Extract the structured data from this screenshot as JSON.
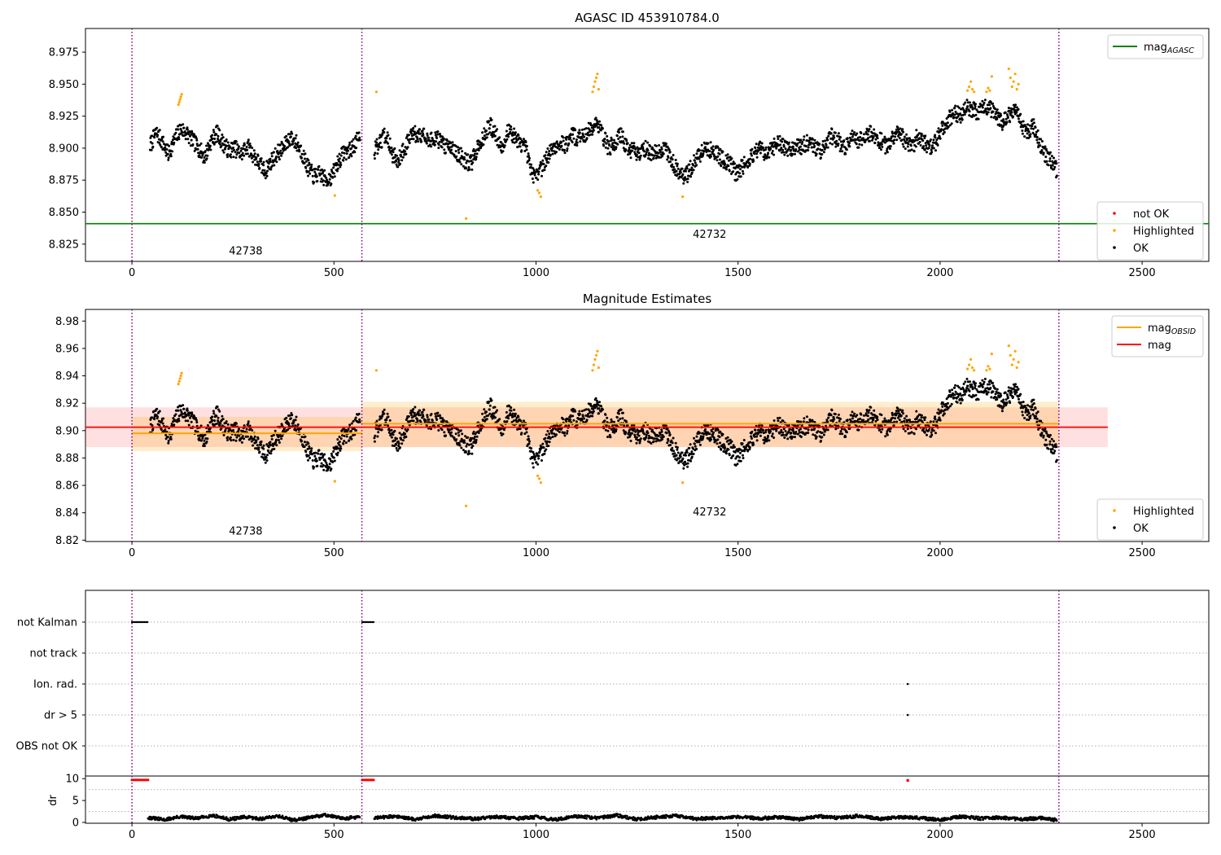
{
  "chart_data": [
    {
      "id": "agasc",
      "type": "scatter",
      "title": "AGASC ID 453910784.0",
      "xlabel": "",
      "ylabel": "",
      "xlim": [
        -115,
        2665
      ],
      "ylim": [
        8.8115,
        8.9935
      ],
      "xticks": [
        0,
        500,
        1000,
        1500,
        2000,
        2500
      ],
      "yticks": [
        8.825,
        8.85,
        8.875,
        8.9,
        8.925,
        8.95,
        8.975
      ],
      "ytick_labels": [
        "8.825",
        "8.850",
        "8.875",
        "8.900",
        "8.925",
        "8.950",
        "8.975"
      ],
      "obs_boundaries": [
        0,
        569,
        2294
      ],
      "obsid_labels": [
        {
          "x": 240,
          "y": 8.817,
          "text": "42738"
        },
        {
          "x": 1388,
          "y": 8.83,
          "text": "42732"
        }
      ],
      "reference_lines": [
        {
          "name": "mag_AGASC",
          "y": 8.841,
          "x": [
            -115,
            2665
          ],
          "color": "#008000"
        }
      ],
      "legend_upper": [
        {
          "label": "mag",
          "sub": "AGASC",
          "kind": "line",
          "color": "#008000"
        }
      ],
      "legend_lower": [
        {
          "label": "not OK",
          "kind": "dot",
          "color": "#ff0000"
        },
        {
          "label": "Highlighted",
          "kind": "dot",
          "color": "#ffa500"
        },
        {
          "label": "OK",
          "kind": "dot",
          "color": "#000000"
        }
      ],
      "series": [
        {
          "name": "OK",
          "color": "#000000",
          "segments": [
            {
              "x": [
                45,
                60,
                75,
                90,
                105,
                120,
                135,
                150,
                165,
                180,
                195,
                210,
                225,
                240,
                255,
                270,
                285,
                300,
                315,
                330,
                345,
                360,
                375,
                390,
                405,
                420,
                435,
                450,
                465,
                480,
                495,
                510,
                525,
                540,
                555,
                565
              ],
              "y": [
                8.902,
                8.912,
                8.905,
                8.895,
                8.906,
                8.915,
                8.912,
                8.906,
                8.9,
                8.893,
                8.905,
                8.912,
                8.904,
                8.898,
                8.9,
                8.895,
                8.902,
                8.895,
                8.888,
                8.882,
                8.89,
                8.896,
                8.9,
                8.908,
                8.905,
                8.897,
                8.885,
                8.878,
                8.88,
                8.875,
                8.878,
                8.889,
                8.897,
                8.898,
                8.905,
                8.908
              ]
            },
            {
              "x": [
                600,
                615,
                630,
                645,
                660,
                675,
                690,
                705,
                720,
                735,
                750,
                765,
                780,
                795,
                810,
                825,
                840,
                855,
                870,
                885,
                900,
                915,
                930,
                945,
                960,
                975,
                990,
                1000,
                1015,
                1030,
                1045,
                1060,
                1075,
                1090,
                1105,
                1120,
                1135,
                1150,
                1165,
                1180,
                1195,
                1210,
                1225,
                1240,
                1255,
                1270,
                1285,
                1300,
                1315,
                1330,
                1345,
                1360,
                1375,
                1390,
                1405,
                1420,
                1435,
                1450,
                1465,
                1480,
                1495,
                1510,
                1525,
                1540,
                1555,
                1570,
                1585,
                1600,
                1615,
                1630,
                1645,
                1660,
                1675,
                1690,
                1705,
                1720,
                1735,
                1750,
                1765,
                1780,
                1795,
                1810,
                1825,
                1840,
                1855,
                1870,
                1885,
                1900,
                1915,
                1930,
                1945,
                1960,
                1975,
                1990,
                2005,
                2020,
                2035,
                2050,
                2065,
                2080,
                2095,
                2110,
                2125,
                2140,
                2155,
                2170,
                2185,
                2200,
                2215,
                2230,
                2245,
                2260,
                2275,
                2290
              ],
              "y": [
                8.898,
                8.905,
                8.912,
                8.895,
                8.89,
                8.9,
                8.908,
                8.912,
                8.91,
                8.906,
                8.908,
                8.905,
                8.9,
                8.898,
                8.895,
                8.89,
                8.888,
                8.9,
                8.908,
                8.918,
                8.912,
                8.9,
                8.915,
                8.91,
                8.902,
                8.9,
                8.88,
                8.876,
                8.885,
                8.895,
                8.9,
                8.905,
                8.902,
                8.91,
                8.908,
                8.91,
                8.915,
                8.92,
                8.91,
                8.9,
                8.905,
                8.91,
                8.9,
                8.898,
                8.895,
                8.9,
                8.895,
                8.898,
                8.9,
                8.895,
                8.885,
                8.878,
                8.88,
                8.888,
                8.895,
                8.9,
                8.898,
                8.895,
                8.89,
                8.888,
                8.88,
                8.885,
                8.89,
                8.896,
                8.9,
                8.895,
                8.9,
                8.905,
                8.9,
                8.898,
                8.9,
                8.902,
                8.905,
                8.9,
                8.898,
                8.905,
                8.91,
                8.905,
                8.9,
                8.91,
                8.905,
                8.908,
                8.912,
                8.908,
                8.905,
                8.9,
                8.91,
                8.912,
                8.905,
                8.9,
                8.91,
                8.905,
                8.9,
                8.905,
                8.915,
                8.922,
                8.928,
                8.925,
                8.932,
                8.93,
                8.928,
                8.935,
                8.93,
                8.925,
                8.92,
                8.925,
                8.93,
                8.92,
                8.912,
                8.918,
                8.905,
                8.895,
                8.89,
                8.882
              ]
            }
          ]
        },
        {
          "name": "Highlighted",
          "color": "#ffa500",
          "x": [
            115,
            117,
            119,
            121,
            123,
            502,
            605,
            827,
            1004,
            1008,
            1012,
            1140,
            1143,
            1146,
            1149,
            1152,
            1155,
            1363,
            2068,
            2072,
            2076,
            2080,
            2084,
            2115,
            2119,
            2123,
            2128,
            2170,
            2174,
            2178,
            2182,
            2186,
            2190,
            2194
          ],
          "y": [
            8.934,
            8.936,
            8.938,
            8.94,
            8.942,
            8.863,
            8.944,
            8.845,
            8.867,
            8.865,
            8.862,
            8.944,
            8.948,
            8.952,
            8.955,
            8.958,
            8.946,
            8.862,
            8.945,
            8.948,
            8.952,
            8.946,
            8.944,
            8.944,
            8.947,
            8.945,
            8.956,
            8.962,
            8.955,
            8.948,
            8.952,
            8.958,
            8.946,
            8.95
          ]
        },
        {
          "name": "not OK",
          "color": "#ff0000",
          "x": [],
          "y": []
        }
      ]
    },
    {
      "id": "magest",
      "type": "scatter",
      "title": "Magnitude Estimates",
      "xlabel": "",
      "ylabel": "",
      "xlim": [
        -115,
        2665
      ],
      "ylim": [
        8.819,
        8.9885
      ],
      "xticks": [
        0,
        500,
        1000,
        1500,
        2000,
        2500
      ],
      "yticks": [
        8.82,
        8.84,
        8.86,
        8.88,
        8.9,
        8.92,
        8.94,
        8.96,
        8.98
      ],
      "ytick_labels": [
        "8.82",
        "8.84",
        "8.86",
        "8.88",
        "8.90",
        "8.92",
        "8.94",
        "8.96",
        "8.98"
      ],
      "obs_boundaries": [
        0,
        569,
        2294
      ],
      "obsid_labels": [
        {
          "x": 240,
          "y": 8.824,
          "text": "42738"
        },
        {
          "x": 1388,
          "y": 8.838,
          "text": "42732"
        }
      ],
      "mag": {
        "value": 8.9025,
        "low": 8.888,
        "high": 8.917,
        "x": [
          -115,
          2415
        ],
        "color": "#ff0000"
      },
      "mag_obsid": [
        {
          "x": [
            0,
            569
          ],
          "value": 8.898,
          "low": 8.885,
          "high": 8.91
        },
        {
          "x": [
            569,
            2294
          ],
          "value": 8.905,
          "low": 8.888,
          "high": 8.921
        }
      ],
      "legend_upper": [
        {
          "label": "mag",
          "sub": "OBSID",
          "kind": "line",
          "color": "#ffa500"
        },
        {
          "label": "mag",
          "sub": "",
          "kind": "line",
          "color": "#ff0000"
        }
      ],
      "legend_lower": [
        {
          "label": "Highlighted",
          "kind": "dot",
          "color": "#ffa500"
        },
        {
          "label": "OK",
          "kind": "dot",
          "color": "#000000"
        }
      ],
      "series_from": "agasc"
    },
    {
      "id": "flags",
      "type": "scatter",
      "title": "",
      "xlabel": "",
      "ylabel": "",
      "xlim": [
        -115,
        2665
      ],
      "categories": [
        "not Kalman",
        "not track",
        "Ion. rad.",
        "dr > 5",
        "OBS not OK"
      ],
      "obs_boundaries": [
        0,
        569,
        2294
      ],
      "series": [
        {
          "name": "not Kalman",
          "color": "#000000",
          "x": [
            0,
            40,
            570,
            600
          ],
          "ranges": true
        },
        {
          "name": "Ion. rad.",
          "color": "#000000",
          "x": [
            1920
          ]
        },
        {
          "name": "dr > 5",
          "color": "#000000",
          "x": [
            1920
          ]
        }
      ]
    },
    {
      "id": "dr",
      "type": "scatter",
      "title": "",
      "xlabel": "",
      "ylabel": "dr",
      "xlim": [
        -115,
        2665
      ],
      "ylim": [
        -0.2,
        10.6
      ],
      "xticks": [
        0,
        500,
        1000,
        1500,
        2000,
        2500
      ],
      "yticks": [
        0,
        5,
        10
      ],
      "ytick_labels": [
        "0",
        "5",
        "10"
      ],
      "obs_boundaries": [
        0,
        569,
        2294
      ],
      "series": [
        {
          "name": "dr",
          "color": "#000000",
          "segments": [
            {
              "x": [
                40,
                80,
                120,
                160,
                200,
                240,
                280,
                320,
                360,
                400,
                440,
                480,
                520,
                565
              ],
              "y": [
                1.1,
                0.6,
                1.3,
                0.9,
                1.6,
                0.7,
                1.2,
                0.8,
                1.5,
                0.5,
                1.1,
                1.7,
                0.9,
                1.2
              ]
            },
            {
              "x": [
                600,
                650,
                700,
                750,
                800,
                850,
                900,
                950,
                1000,
                1050,
                1100,
                1150,
                1200,
                1250,
                1300,
                1350,
                1400,
                1450,
                1500,
                1550,
                1600,
                1650,
                1700,
                1750,
                1800,
                1850,
                1900,
                1950,
                2000,
                2050,
                2100,
                2150,
                2200,
                2250,
                2290
              ],
              "y": [
                1.0,
                1.4,
                0.7,
                1.5,
                1.1,
                0.8,
                1.3,
                0.9,
                1.2,
                0.6,
                1.4,
                1.0,
                1.6,
                0.7,
                1.2,
                1.5,
                0.8,
                1.1,
                1.3,
                0.9,
                1.2,
                0.7,
                1.4,
                1.0,
                1.5,
                0.8,
                1.2,
                1.0,
                0.6,
                1.3,
                0.9,
                1.1,
                0.7,
                1.0,
                0.5
              ]
            }
          ]
        },
        {
          "name": "dr flagged",
          "color": "#ff0000",
          "x": [
            0,
            40,
            570,
            600,
            1920
          ],
          "y": [
            9.7,
            9.7,
            9.7,
            9.7,
            9.6
          ],
          "ranges": [
            true,
            true,
            false
          ]
        }
      ]
    }
  ]
}
